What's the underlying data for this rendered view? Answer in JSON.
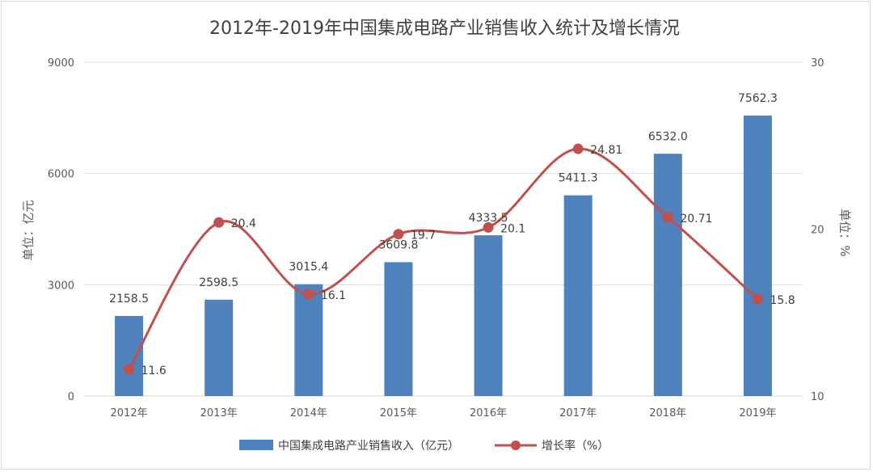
{
  "chart_data": {
    "type": "bar",
    "title": "2012年-2019年中国集成电路产业销售收入统计及增长情况",
    "categories": [
      "2012年",
      "2013年",
      "2014年",
      "2015年",
      "2016年",
      "2017年",
      "2018年",
      "2019年"
    ],
    "series": [
      {
        "name": "中国集成电路产业销售收入（亿元）",
        "type": "bar",
        "axis": "left",
        "color": "#4f81bd",
        "values": [
          2158.5,
          2598.5,
          3015.4,
          3609.8,
          4333.5,
          5411.3,
          6532.0,
          7562.3
        ],
        "labels": [
          "2158.5",
          "2598.5",
          "3015.4",
          "3609.8",
          "4333.5",
          "5411.3",
          "6532.0",
          "7562.3"
        ]
      },
      {
        "name": "增长率（%）",
        "type": "line",
        "axis": "right",
        "color": "#c0504d",
        "values": [
          11.6,
          20.4,
          16.1,
          19.7,
          20.1,
          24.81,
          20.71,
          15.8
        ],
        "labels": [
          "11.6",
          "20.4",
          "16.1",
          "19.7",
          "20.1",
          "24.81",
          "20.71",
          "15.8"
        ]
      }
    ],
    "ylabel": "单位：亿元",
    "ylabel_right": "单位：%",
    "ylim": [
      0,
      9000
    ],
    "yticks": [
      "0",
      "3000",
      "6000",
      "9000"
    ],
    "ylim_right": [
      10,
      30
    ],
    "yticks_right": [
      "10",
      "20",
      "30"
    ],
    "grid": true,
    "legend": "bottom"
  }
}
